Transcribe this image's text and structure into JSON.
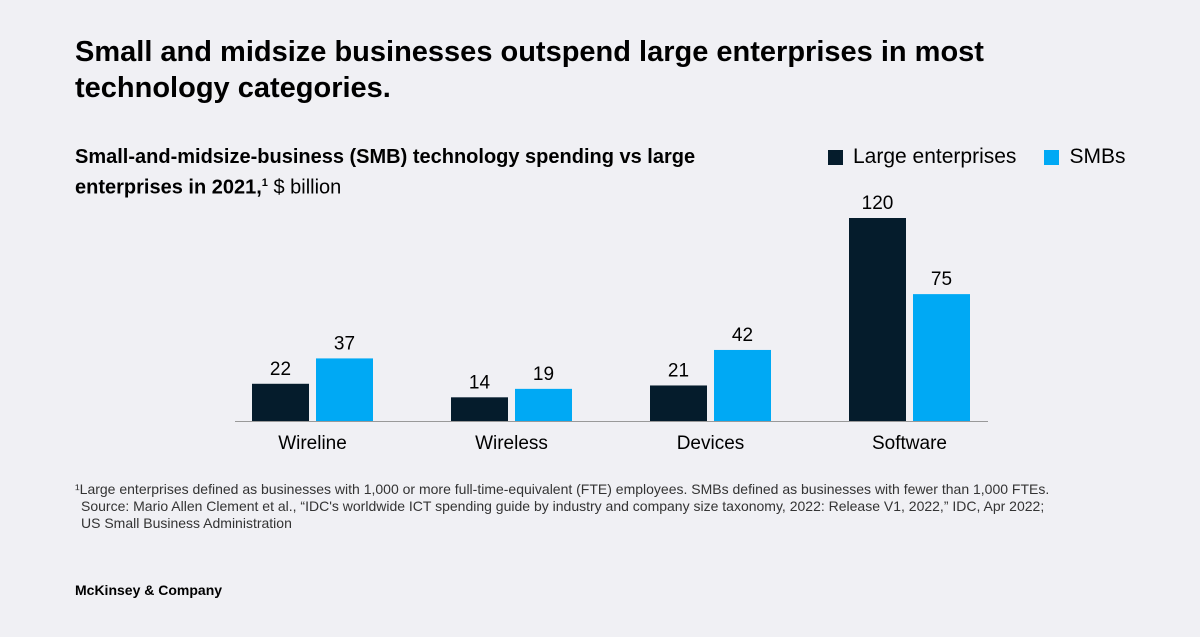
{
  "headline": "Small and midsize businesses outspend large enterprises in most technology categories.",
  "chart_data": {
    "type": "bar",
    "title_bold": "Small-and-midsize-business (SMB) technology spending vs large enterprises in 2021,",
    "title_footnote": "1",
    "title_unit": " $ billion",
    "categories": [
      "Wireline",
      "Wireless",
      "Devices",
      "Software"
    ],
    "series": [
      {
        "name": "Large enterprises",
        "color": "#051c2c",
        "values": [
          22,
          14,
          21,
          120
        ]
      },
      {
        "name": "SMBs",
        "color": "#00a9f4",
        "values": [
          37,
          19,
          42,
          75
        ]
      }
    ],
    "ylim": [
      0,
      120
    ],
    "grid": false,
    "legend": "top-right"
  },
  "footnotes": [
    "¹Large enterprises defined as businesses with 1,000 or more full-time-equivalent (FTE) employees. SMBs defined as businesses with fewer than 1,000 FTEs.",
    "Source: Mario Allen Clement et al., “IDC's worldwide ICT spending guide by industry and company size taxonomy, 2022: Release V1, 2022,” IDC, Apr 2022;",
    "US Small Business Administration"
  ],
  "brand": "McKinsey & Company"
}
